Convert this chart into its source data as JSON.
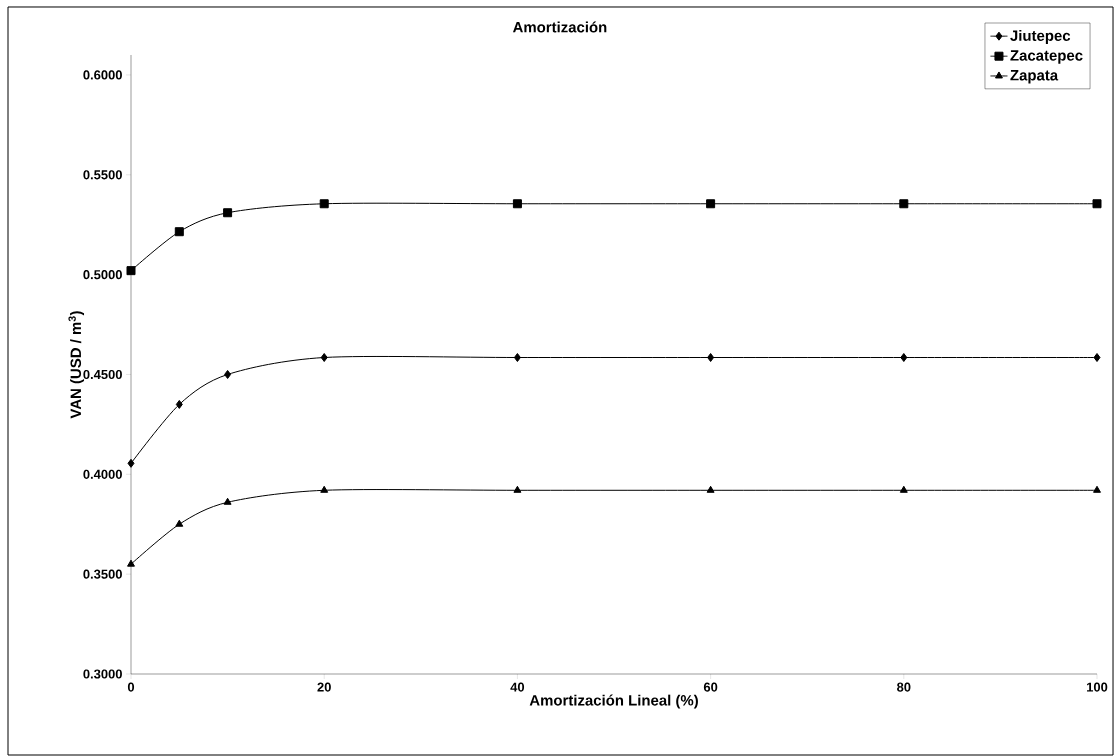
{
  "chart_data": {
    "type": "line",
    "title": "Amortización",
    "xlabel": "Amortización Lineal (%)",
    "ylabel": "VAN (USD / m$^{3}$)",
    "x": [
      0,
      5,
      10,
      20,
      40,
      60,
      80,
      100
    ],
    "series": [
      {
        "name": "Jiutepec",
        "color": "#000000",
        "marker": "diamond",
        "values": [
          0.4055,
          0.435,
          0.45,
          0.4585,
          0.4585,
          0.4585,
          0.4585,
          0.4585
        ]
      },
      {
        "name": "Zacatepec",
        "color": "#000000",
        "marker": "square",
        "values": [
          0.502,
          0.5215,
          0.531,
          0.5355,
          0.5355,
          0.5355,
          0.5355,
          0.5355
        ]
      },
      {
        "name": "Zapata",
        "color": "#000000",
        "marker": "triangle",
        "values": [
          0.355,
          0.375,
          0.386,
          0.392,
          0.392,
          0.392,
          0.392,
          0.392
        ]
      }
    ],
    "xlim": [
      0,
      100
    ],
    "xticks": [
      0,
      20,
      40,
      60,
      80,
      100
    ],
    "ylim": [
      0.3,
      0.61
    ],
    "yticks": [
      {
        "value": 0.3,
        "label": "0.3000"
      },
      {
        "value": 0.35,
        "label": "0.3500"
      },
      {
        "value": 0.4,
        "label": "0.4000"
      },
      {
        "value": 0.45,
        "label": "0.4500"
      },
      {
        "value": 0.5,
        "label": "0.5000"
      },
      {
        "value": 0.55,
        "label": "0.5500"
      },
      {
        "value": 0.6,
        "label": "0.6000"
      }
    ],
    "grid": false,
    "legend": "top right",
    "line_style": "solid"
  }
}
